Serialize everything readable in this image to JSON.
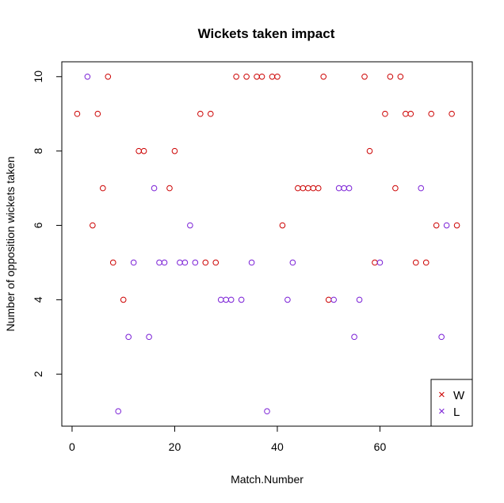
{
  "chart_data": {
    "type": "scatter",
    "title": "Wickets taken impact",
    "xlabel": "Match.Number",
    "ylabel": "Number of opposition wickets taken",
    "xlim": [
      -2,
      78
    ],
    "ylim": [
      0.6,
      10.4
    ],
    "xticks": [
      0,
      20,
      40,
      60
    ],
    "yticks": [
      2,
      4,
      6,
      8,
      10
    ],
    "grid": false,
    "legend_position": "bottom-right",
    "marker": "open-circle",
    "series": [
      {
        "name": "W",
        "color": "#cc0000",
        "legend_symbol": "×",
        "points": [
          [
            1,
            9
          ],
          [
            4,
            6
          ],
          [
            5,
            9
          ],
          [
            6,
            7
          ],
          [
            7,
            10
          ],
          [
            8,
            5
          ],
          [
            10,
            4
          ],
          [
            13,
            8
          ],
          [
            14,
            8
          ],
          [
            19,
            7
          ],
          [
            20,
            8
          ],
          [
            25,
            9
          ],
          [
            26,
            5
          ],
          [
            27,
            9
          ],
          [
            28,
            5
          ],
          [
            32,
            10
          ],
          [
            34,
            10
          ],
          [
            36,
            10
          ],
          [
            37,
            10
          ],
          [
            39,
            10
          ],
          [
            40,
            10
          ],
          [
            41,
            6
          ],
          [
            44,
            7
          ],
          [
            45,
            7
          ],
          [
            46,
            7
          ],
          [
            47,
            7
          ],
          [
            48,
            7
          ],
          [
            49,
            10
          ],
          [
            50,
            4
          ],
          [
            57,
            10
          ],
          [
            58,
            8
          ],
          [
            59,
            5
          ],
          [
            61,
            9
          ],
          [
            62,
            10
          ],
          [
            63,
            7
          ],
          [
            64,
            10
          ],
          [
            65,
            9
          ],
          [
            66,
            9
          ],
          [
            67,
            5
          ],
          [
            69,
            5
          ],
          [
            70,
            9
          ],
          [
            71,
            6
          ],
          [
            74,
            9
          ],
          [
            75,
            6
          ]
        ]
      },
      {
        "name": "L",
        "color": "#7a1fd6",
        "legend_symbol": "×",
        "points": [
          [
            3,
            10
          ],
          [
            9,
            1
          ],
          [
            11,
            3
          ],
          [
            12,
            5
          ],
          [
            15,
            3
          ],
          [
            16,
            7
          ],
          [
            17,
            5
          ],
          [
            18,
            5
          ],
          [
            21,
            5
          ],
          [
            22,
            5
          ],
          [
            23,
            6
          ],
          [
            24,
            5
          ],
          [
            29,
            4
          ],
          [
            30,
            4
          ],
          [
            31,
            4
          ],
          [
            33,
            4
          ],
          [
            35,
            5
          ],
          [
            38,
            1
          ],
          [
            42,
            4
          ],
          [
            43,
            5
          ],
          [
            51,
            4
          ],
          [
            52,
            7
          ],
          [
            53,
            7
          ],
          [
            54,
            7
          ],
          [
            55,
            3
          ],
          [
            56,
            4
          ],
          [
            60,
            5
          ],
          [
            68,
            7
          ],
          [
            72,
            3
          ],
          [
            73,
            6
          ]
        ]
      }
    ]
  }
}
